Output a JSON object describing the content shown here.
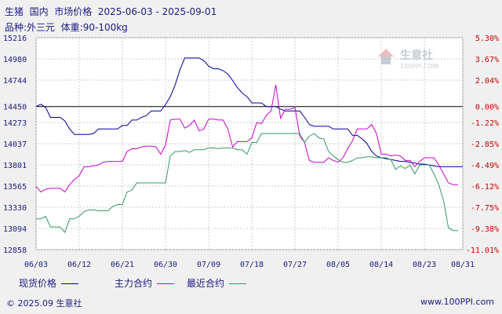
{
  "header": {
    "title": "生猪  国内  市场价格  2025-06-03 - 2025-09-01",
    "subtitle": "品种:外三元  体重:90-100kg"
  },
  "logo": {
    "text": "生意社",
    "url": "100PPI.COM"
  },
  "legend": [
    {
      "label": "现货价格",
      "color": "#000099"
    },
    {
      "label": "主力合约",
      "color": "#cc00cc"
    },
    {
      "label": "最近合约",
      "color": "#339966"
    }
  ],
  "footer": {
    "left": "© 2025.09 生意社",
    "right": "www.100PPI.com"
  },
  "chart_data": {
    "type": "line",
    "ylim": [
      12858,
      15216
    ],
    "y_ticks": [
      "15216",
      "14980",
      "14744",
      "14450",
      "14273",
      "14037",
      "13801",
      "13565",
      "13330",
      "13094",
      "12858"
    ],
    "y_tick_values": [
      15216,
      14980,
      14744,
      14450,
      14273,
      14037,
      13801,
      13565,
      13330,
      13094,
      12858
    ],
    "y2_ticks": [
      "5.30%",
      "3.67%",
      "2.04%",
      "0.00%",
      "-1.22%",
      "-2.85%",
      "-4.49%",
      "-6.12%",
      "-7.75%",
      "-9.38%",
      "-11.01%"
    ],
    "x_ticks": [
      "06/03",
      "06/12",
      "06/21",
      "06/30",
      "07/09",
      "07/18",
      "07/27",
      "08/05",
      "08/14",
      "08/23",
      "08/31"
    ],
    "x_tick_days": [
      0,
      9,
      18,
      27,
      36,
      45,
      54,
      63,
      72,
      81,
      89
    ],
    "baseline": 14450,
    "grid": true,
    "series": [
      {
        "name": "现货价格",
        "color": "#000099",
        "x": [
          0,
          1,
          2,
          3,
          4,
          5,
          6,
          7,
          8,
          9,
          10,
          11,
          12,
          13,
          14,
          15,
          16,
          17,
          18,
          19,
          20,
          21,
          22,
          23,
          24,
          25,
          26,
          27,
          28,
          29,
          30,
          31,
          32,
          33,
          34,
          35,
          36,
          37,
          38,
          39,
          40,
          41,
          42,
          43,
          44,
          45,
          46,
          47,
          48,
          49,
          50,
          51,
          52,
          53,
          54,
          55,
          56,
          57,
          58,
          59,
          60,
          61,
          62,
          63,
          64,
          65,
          66,
          67,
          68,
          69,
          70,
          71,
          72,
          73,
          74,
          75,
          76,
          77,
          78,
          79,
          80,
          81,
          82,
          83,
          84,
          85,
          86,
          87,
          88,
          89
        ],
        "y": [
          14450,
          14475,
          14440,
          14330,
          14330,
          14330,
          14290,
          14200,
          14140,
          14140,
          14140,
          14140,
          14150,
          14200,
          14200,
          14200,
          14200,
          14200,
          14240,
          14240,
          14300,
          14300,
          14330,
          14350,
          14400,
          14400,
          14400,
          14470,
          14560,
          14690,
          14860,
          14990,
          14990,
          14990,
          14990,
          14960,
          14900,
          14870,
          14870,
          14850,
          14810,
          14740,
          14660,
          14600,
          14560,
          14490,
          14490,
          14490,
          14450,
          14450,
          14450,
          14420,
          14400,
          14400,
          14400,
          14400,
          14330,
          14250,
          14230,
          14230,
          14230,
          14230,
          14200,
          14200,
          14200,
          14200,
          14130,
          14130,
          14090,
          14040,
          13950,
          13900,
          13880,
          13870,
          13860,
          13850,
          13840,
          13840,
          13830,
          13820,
          13810,
          13810,
          13800,
          13790,
          13780,
          13780,
          13780,
          13780,
          13780,
          13780
        ]
      },
      {
        "name": "主力合约",
        "color": "#cc00cc",
        "x": [
          0,
          1,
          2,
          3,
          4,
          5,
          6,
          7,
          8,
          9,
          10,
          11,
          12,
          13,
          14,
          15,
          16,
          17,
          18,
          19,
          20,
          21,
          22,
          23,
          24,
          25,
          26,
          27,
          28,
          29,
          30,
          31,
          32,
          33,
          34,
          35,
          36,
          37,
          38,
          39,
          40,
          41,
          42,
          43,
          44,
          45,
          46,
          47,
          48,
          49,
          50,
          51,
          52,
          53,
          54,
          55,
          56,
          57,
          58,
          59,
          60,
          61,
          62,
          63,
          64,
          65,
          66,
          67,
          68,
          69,
          70,
          71,
          72,
          73,
          74,
          75,
          76,
          77,
          78,
          79,
          80,
          81,
          82,
          83,
          84,
          85,
          86,
          87,
          88
        ],
        "y": [
          13560,
          13500,
          13530,
          13540,
          13540,
          13540,
          13500,
          13580,
          13640,
          13680,
          13780,
          13780,
          13790,
          13800,
          13830,
          13840,
          13840,
          13840,
          13840,
          13950,
          13980,
          13980,
          14000,
          14010,
          14010,
          14000,
          13920,
          14020,
          14300,
          14310,
          14310,
          14210,
          14240,
          14300,
          14180,
          14200,
          14310,
          14310,
          14300,
          14300,
          14200,
          14000,
          14060,
          14060,
          14060,
          14100,
          14270,
          14260,
          14350,
          14400,
          14690,
          14320,
          14420,
          14420,
          14440,
          14120,
          14050,
          13850,
          13830,
          13830,
          13830,
          13880,
          13850,
          13830,
          13880,
          13980,
          14070,
          14200,
          14200,
          14200,
          14250,
          14150,
          13920,
          13920,
          13900,
          13910,
          13900,
          13850,
          13850,
          13780,
          13840,
          13880,
          13880,
          13880,
          13800,
          13700,
          13600,
          13580,
          13580
        ]
      },
      {
        "name": "最近合约",
        "color": "#339966",
        "x": [
          0,
          1,
          2,
          3,
          4,
          5,
          6,
          7,
          8,
          9,
          10,
          11,
          12,
          13,
          14,
          15,
          16,
          17,
          18,
          19,
          20,
          21,
          22,
          23,
          24,
          25,
          26,
          27,
          28,
          29,
          30,
          31,
          32,
          33,
          34,
          35,
          36,
          37,
          38,
          39,
          40,
          41,
          42,
          43,
          44,
          45,
          46,
          47,
          48,
          49,
          50,
          51,
          52,
          53,
          54,
          55,
          56,
          57,
          58,
          59,
          60,
          61,
          62,
          63,
          64,
          65,
          66,
          67,
          68,
          69,
          70,
          71,
          72,
          73,
          74,
          75,
          76,
          77,
          78,
          79,
          80,
          81,
          82,
          83,
          84,
          85,
          86,
          87,
          88
        ],
        "y": [
          13200,
          13200,
          13230,
          13110,
          13110,
          13110,
          13050,
          13200,
          13200,
          13230,
          13280,
          13300,
          13300,
          13290,
          13290,
          13290,
          13340,
          13360,
          13360,
          13500,
          13520,
          13600,
          13600,
          13600,
          13600,
          13600,
          13600,
          13600,
          13900,
          13950,
          13950,
          13960,
          13940,
          13970,
          13970,
          13970,
          13990,
          13990,
          13980,
          13990,
          13990,
          13990,
          13970,
          13970,
          13920,
          14050,
          14050,
          14150,
          14150,
          14150,
          14150,
          14150,
          14150,
          14150,
          14150,
          14150,
          14050,
          14120,
          14150,
          14100,
          14090,
          13950,
          13900,
          13860,
          13830,
          13830,
          13850,
          13880,
          13880,
          13890,
          13890,
          13880,
          13880,
          13880,
          13860,
          13750,
          13790,
          13760,
          13800,
          13700,
          13800,
          13800,
          13800,
          13700,
          13580,
          13400,
          13100,
          13070,
          13070
        ]
      }
    ]
  }
}
